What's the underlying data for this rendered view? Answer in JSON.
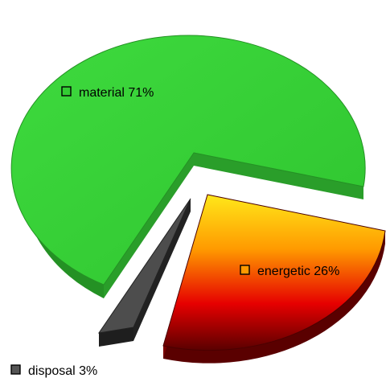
{
  "chart_data": {
    "type": "pie",
    "slices": [
      {
        "label": "material 71%",
        "name": "material",
        "percent": 71,
        "color": "#33CC33"
      },
      {
        "label": "energetic 26%",
        "name": "energetic",
        "percent": 26,
        "color": "#FF9900"
      },
      {
        "label": "disposal 3%",
        "name": "disposal",
        "percent": 3,
        "color": "#555555"
      }
    ],
    "exploded": true,
    "three_d": true
  }
}
